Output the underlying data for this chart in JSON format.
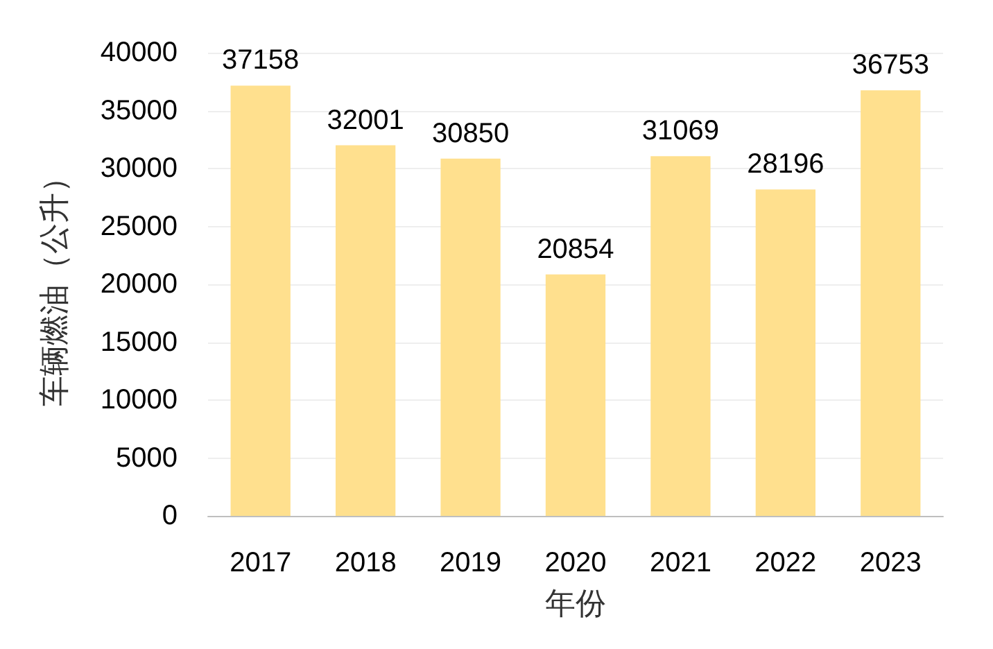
{
  "chart_data": {
    "type": "bar",
    "xlabel": "年份",
    "ylabel": "车辆燃油（公升）",
    "categories": [
      "2017",
      "2018",
      "2019",
      "2020",
      "2021",
      "2022",
      "2023"
    ],
    "values": [
      37158,
      32001,
      30850,
      20854,
      31069,
      28196,
      36753
    ],
    "color": "#ffe08e",
    "ylim": [
      0,
      40000
    ],
    "yticks": [
      0,
      5000,
      10000,
      15000,
      20000,
      25000,
      30000,
      35000,
      40000
    ],
    "grid": "y",
    "data_labels": true
  }
}
